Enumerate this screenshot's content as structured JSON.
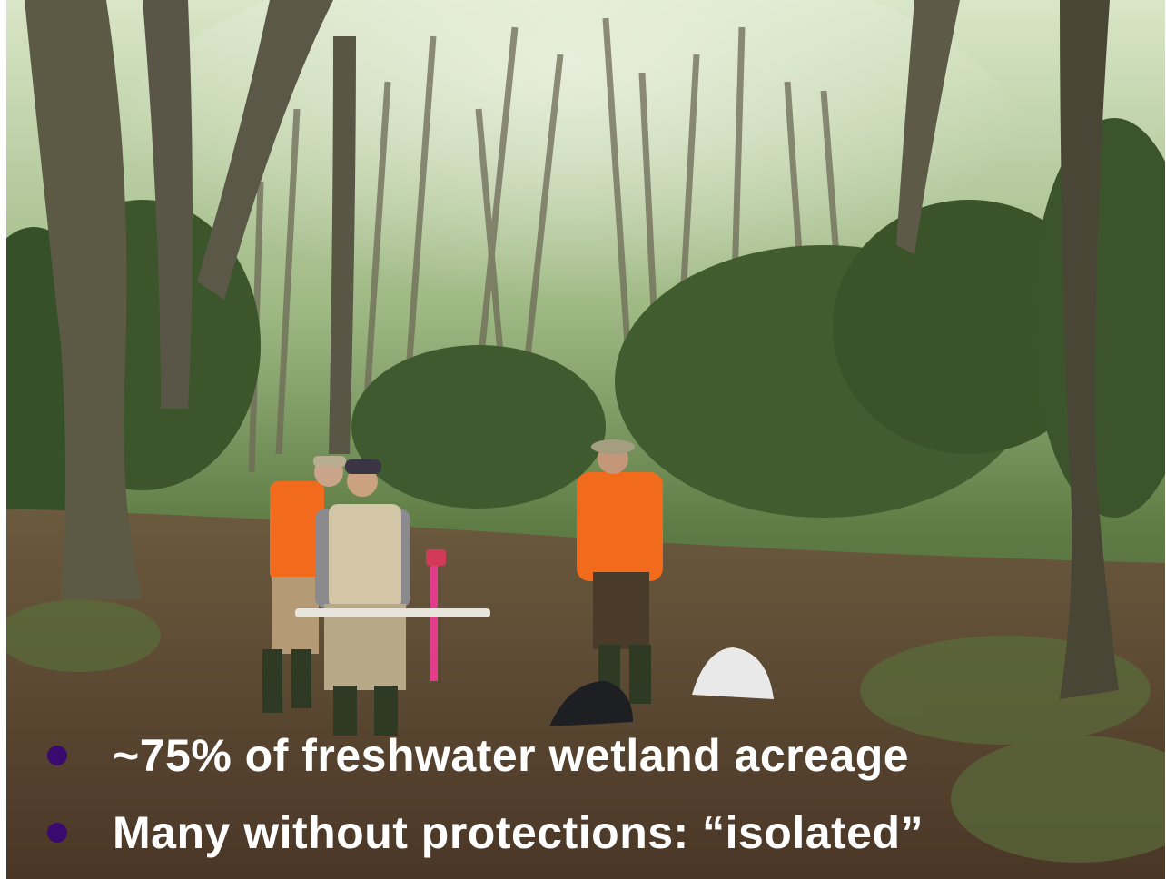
{
  "slide": {
    "bullets": [
      {
        "text": "~75% of freshwater wetland acreage"
      },
      {
        "text": "Many without protections: “isolated”"
      }
    ]
  },
  "colors": {
    "bullet_dot": "#3b0a6e",
    "bullet_text": "#ffffff",
    "vest_orange": "#f26a1b",
    "foliage": "#4f6d38",
    "forest_floor": "#5a4433"
  },
  "icons": {
    "bullet": "filled-circle"
  }
}
